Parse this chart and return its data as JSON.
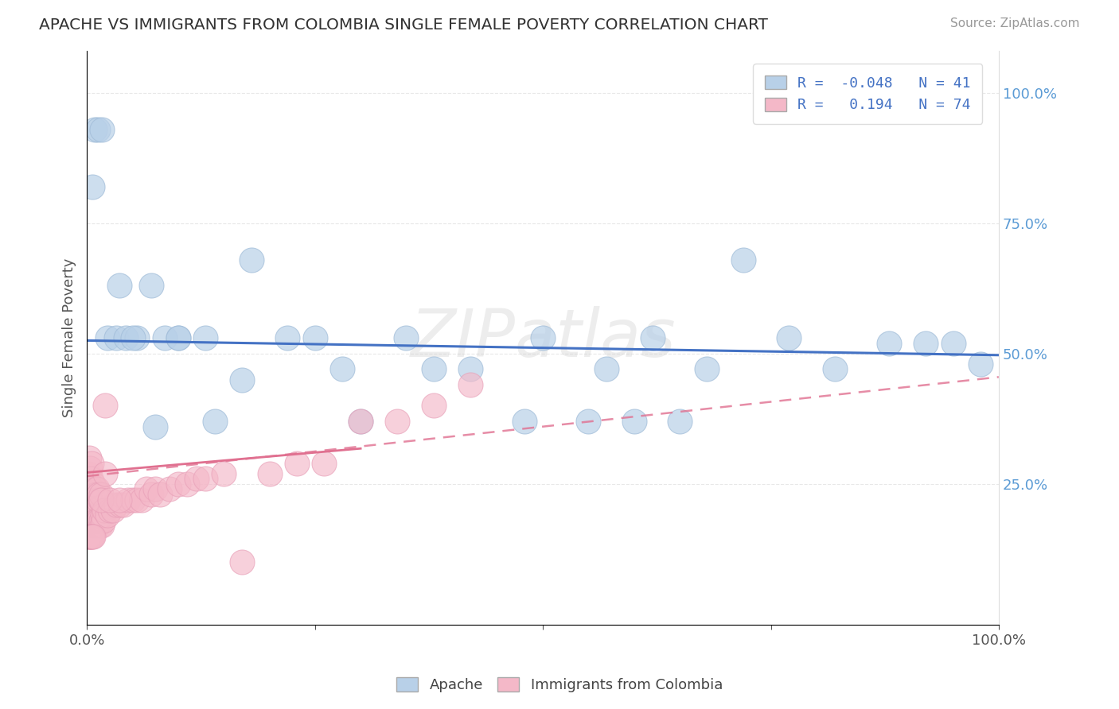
{
  "title": "APACHE VS IMMIGRANTS FROM COLOMBIA SINGLE FEMALE POVERTY CORRELATION CHART",
  "source": "Source: ZipAtlas.com",
  "ylabel": "Single Female Poverty",
  "xlim": [
    0.0,
    1.0
  ],
  "ylim": [
    -0.02,
    1.08
  ],
  "yticks": [
    0.0,
    0.25,
    0.5,
    0.75,
    1.0
  ],
  "right_ytick_labels": [
    "",
    "25.0%",
    "50.0%",
    "75.0%",
    "100.0%"
  ],
  "xticks": [
    0.0,
    0.25,
    0.5,
    0.75,
    1.0
  ],
  "xtick_labels": [
    "0.0%",
    "",
    "",
    "",
    "100.0%"
  ],
  "apache_R": -0.048,
  "apache_N": 41,
  "colombia_R": 0.194,
  "colombia_N": 74,
  "apache_color": "#b8d0e8",
  "apache_edge_color": "#a0bcd8",
  "apache_line_color": "#4472c4",
  "colombia_color": "#f4b8c8",
  "colombia_edge_color": "#e8a0b8",
  "colombia_line_color": "#e07090",
  "colombia_dash_color": "#e07090",
  "background_color": "#ffffff",
  "grid_color": "#e8e8e8",
  "apache_x": [
    0.008,
    0.012,
    0.016,
    0.006,
    0.022,
    0.032,
    0.042,
    0.055,
    0.07,
    0.085,
    0.1,
    0.13,
    0.17,
    0.22,
    0.28,
    0.35,
    0.42,
    0.5,
    0.57,
    0.62,
    0.68,
    0.72,
    0.77,
    0.82,
    0.88,
    0.92,
    0.95,
    0.98,
    0.6,
    0.65,
    0.55,
    0.48,
    0.38,
    0.3,
    0.25,
    0.18,
    0.14,
    0.1,
    0.075,
    0.05,
    0.035
  ],
  "apache_y": [
    0.93,
    0.93,
    0.93,
    0.82,
    0.53,
    0.53,
    0.53,
    0.53,
    0.63,
    0.53,
    0.53,
    0.53,
    0.45,
    0.53,
    0.47,
    0.53,
    0.47,
    0.53,
    0.47,
    0.53,
    0.47,
    0.68,
    0.53,
    0.47,
    0.52,
    0.52,
    0.52,
    0.48,
    0.37,
    0.37,
    0.37,
    0.37,
    0.47,
    0.37,
    0.53,
    0.68,
    0.37,
    0.53,
    0.36,
    0.53,
    0.63
  ],
  "colombia_x": [
    0.001,
    0.002,
    0.002,
    0.003,
    0.003,
    0.004,
    0.004,
    0.005,
    0.005,
    0.005,
    0.006,
    0.006,
    0.007,
    0.007,
    0.008,
    0.008,
    0.009,
    0.009,
    0.01,
    0.01,
    0.011,
    0.011,
    0.012,
    0.012,
    0.013,
    0.013,
    0.014,
    0.014,
    0.015,
    0.015,
    0.016,
    0.017,
    0.018,
    0.019,
    0.02,
    0.022,
    0.025,
    0.028,
    0.032,
    0.036,
    0.04,
    0.045,
    0.05,
    0.055,
    0.06,
    0.065,
    0.07,
    0.075,
    0.08,
    0.09,
    0.1,
    0.11,
    0.12,
    0.13,
    0.15,
    0.17,
    0.2,
    0.23,
    0.26,
    0.3,
    0.34,
    0.38,
    0.42,
    0.001,
    0.002,
    0.003,
    0.004,
    0.005,
    0.006,
    0.007,
    0.015,
    0.02,
    0.025,
    0.035
  ],
  "colombia_y": [
    0.27,
    0.25,
    0.3,
    0.22,
    0.28,
    0.2,
    0.26,
    0.18,
    0.24,
    0.29,
    0.17,
    0.23,
    0.19,
    0.25,
    0.17,
    0.23,
    0.18,
    0.24,
    0.17,
    0.23,
    0.18,
    0.24,
    0.17,
    0.22,
    0.18,
    0.23,
    0.17,
    0.22,
    0.18,
    0.23,
    0.17,
    0.19,
    0.18,
    0.2,
    0.27,
    0.19,
    0.2,
    0.2,
    0.21,
    0.21,
    0.21,
    0.22,
    0.22,
    0.22,
    0.22,
    0.24,
    0.23,
    0.24,
    0.23,
    0.24,
    0.25,
    0.25,
    0.26,
    0.26,
    0.27,
    0.1,
    0.27,
    0.29,
    0.29,
    0.37,
    0.37,
    0.4,
    0.44,
    0.15,
    0.15,
    0.15,
    0.15,
    0.15,
    0.15,
    0.15,
    0.22,
    0.4,
    0.22,
    0.22
  ]
}
